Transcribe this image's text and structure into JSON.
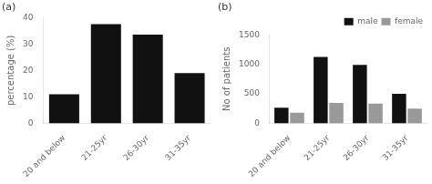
{
  "chart_data": [
    {
      "type": "bar",
      "title": "(a)",
      "categories": [
        "20 and below",
        "21-25yr",
        "26-30yr",
        "31-35yr"
      ],
      "values": [
        11,
        37.5,
        33.5,
        19
      ],
      "color": "#111111",
      "ylabel": "percentage (%)",
      "ylim": [
        0,
        40
      ],
      "yticks": [
        0,
        10,
        20,
        30,
        40
      ],
      "grid": false
    },
    {
      "type": "bar",
      "title": "(b)",
      "categories": [
        "20 and below",
        "21-25yr",
        "26-30yr",
        "31-35yr"
      ],
      "series": [
        {
          "name": "male",
          "color": "#111111",
          "values": [
            265,
            1125,
            990,
            500
          ]
        },
        {
          "name": "female",
          "color": "#999999",
          "values": [
            180,
            345,
            335,
            250
          ]
        }
      ],
      "ylabel": "No of patients",
      "ylim": [
        0,
        1500
      ],
      "yticks": [
        0,
        500,
        1000,
        1500
      ],
      "grid": false,
      "legend": "upper right"
    }
  ]
}
